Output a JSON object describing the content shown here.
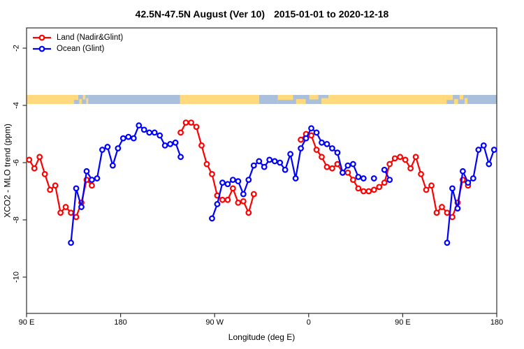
{
  "title": {
    "region_period": "42.5N-47.5N August (Ver 10)",
    "date_range": "2015-01-01 to 2020-12-18"
  },
  "legend": {
    "items": [
      {
        "label": "Land (Nadir&Glint)",
        "color": "#ff0000"
      },
      {
        "label": "Ocean (Glint)",
        "color": "#0000ff"
      }
    ]
  },
  "axes": {
    "x": {
      "label": "Longitude (deg E)",
      "ticks": [
        {
          "pos": 0,
          "label": "90 E"
        },
        {
          "pos": 90,
          "label": "180"
        },
        {
          "pos": 180,
          "label": "90 W"
        },
        {
          "pos": 270,
          "label": "0"
        },
        {
          "pos": 360,
          "label": "90 E"
        },
        {
          "pos": 450,
          "label": "180"
        }
      ]
    },
    "y": {
      "label": "XCO2 - MLO trend (ppm)",
      "ticks": [
        {
          "value": -2,
          "label": "-2"
        },
        {
          "value": -4,
          "label": "-4"
        },
        {
          "value": -6,
          "label": "-6"
        },
        {
          "value": -8,
          "label": "-8"
        },
        {
          "value": -10,
          "label": "-10"
        }
      ]
    }
  },
  "chart_data": {
    "type": "line",
    "title": "42.5N-47.5N August (Ver 10)   2015-01-01 to 2020-12-18",
    "xlabel": "Longitude (deg E)",
    "ylabel": "XCO2 - MLO trend (ppm)",
    "x_axis_note": "x values are degrees along a wrapped longitude axis starting at 90E: 90E->180->90W->0->90E->180 (0..450); longitudes 90E-180E appear at both ends",
    "xlim": [
      0,
      450
    ],
    "ylim": [
      -11.3,
      -1.3
    ],
    "grid": false,
    "legend_position": "top-left",
    "marker": "open-circle",
    "series": [
      {
        "name": "Land (Nadir&Glint)",
        "color": "#ff0000",
        "segments": [
          [
            [
              2.5,
              -5.9
            ],
            [
              7.5,
              -6.2
            ],
            [
              12.5,
              -5.8
            ],
            [
              17.5,
              -6.4
            ],
            [
              22.5,
              -6.95
            ],
            [
              27.5,
              -6.8
            ],
            [
              32.5,
              -7.75
            ],
            [
              37.5,
              -7.55
            ],
            [
              42.5,
              -7.75
            ],
            [
              47.5,
              -7.9
            ],
            [
              52.5,
              -7.4
            ],
            [
              57.5,
              -6.6
            ],
            [
              62.5,
              -6.8
            ]
          ],
          [
            [
              147.5,
              -4.95
            ],
            [
              152.5,
              -4.6
            ],
            [
              157.5,
              -4.6
            ],
            [
              162.5,
              -4.75
            ],
            [
              167.5,
              -5.4
            ],
            [
              172.5,
              -6.05
            ],
            [
              177.5,
              -6.4
            ],
            [
              182.5,
              -7.15
            ],
            [
              187.5,
              -7.3
            ],
            [
              192.5,
              -7.3
            ],
            [
              197.5,
              -6.9
            ],
            [
              202.5,
              -7.4
            ],
            [
              207.5,
              -7.35
            ],
            [
              212.5,
              -7.75
            ],
            [
              217.5,
              -7.1
            ]
          ],
          [
            [
              262.5,
              -5.2
            ],
            [
              267.5,
              -5.0
            ],
            [
              272.5,
              -5.05
            ],
            [
              277.5,
              -5.55
            ],
            [
              282.5,
              -5.8
            ],
            [
              287.5,
              -6.15
            ],
            [
              292.5,
              -6.2
            ],
            [
              297.5,
              -6.05
            ],
            [
              302.5,
              -6.35
            ],
            [
              307.5,
              -6.35
            ],
            [
              312.5,
              -6.6
            ],
            [
              317.5,
              -6.9
            ],
            [
              322.5,
              -7.0
            ],
            [
              327.5,
              -7.0
            ],
            [
              332.5,
              -6.95
            ],
            [
              337.5,
              -6.85
            ],
            [
              342.5,
              -6.7
            ],
            [
              347.5,
              -6.05
            ],
            [
              352.5,
              -5.85
            ],
            [
              357.5,
              -5.8
            ],
            [
              362.5,
              -5.9
            ],
            [
              367.5,
              -6.2
            ],
            [
              372.5,
              -5.8
            ],
            [
              377.5,
              -6.4
            ],
            [
              382.5,
              -6.95
            ],
            [
              387.5,
              -6.8
            ],
            [
              392.5,
              -7.75
            ],
            [
              397.5,
              -7.55
            ],
            [
              402.5,
              -7.75
            ],
            [
              407.5,
              -7.9
            ],
            [
              412.5,
              -7.4
            ],
            [
              417.5,
              -6.6
            ],
            [
              422.5,
              -6.8
            ]
          ]
        ]
      },
      {
        "name": "Ocean (Glint)",
        "color": "#0000ff",
        "segments": [
          [
            [
              42.5,
              -8.8
            ],
            [
              47.5,
              -6.9
            ],
            [
              52.5,
              -7.55
            ],
            [
              57.5,
              -6.3
            ],
            [
              62.5,
              -6.6
            ],
            [
              67.5,
              -6.55
            ],
            [
              72.5,
              -5.55
            ],
            [
              77.5,
              -5.45
            ],
            [
              82.5,
              -6.1
            ],
            [
              87.5,
              -5.5
            ],
            [
              92.5,
              -5.15
            ],
            [
              97.5,
              -5.1
            ],
            [
              102.5,
              -5.15
            ],
            [
              107.5,
              -4.7
            ],
            [
              112.5,
              -4.85
            ],
            [
              117.5,
              -4.95
            ],
            [
              122.5,
              -4.95
            ],
            [
              127.5,
              -5.05
            ],
            [
              132.5,
              -5.4
            ],
            [
              137.5,
              -5.35
            ],
            [
              142.5,
              -5.3
            ],
            [
              147.5,
              -5.8
            ]
          ],
          [
            [
              177.5,
              -7.95
            ],
            [
              182.5,
              -7.45
            ],
            [
              187.5,
              -6.7
            ],
            [
              192.5,
              -6.75
            ],
            [
              197.5,
              -6.6
            ],
            [
              202.5,
              -6.65
            ],
            [
              207.5,
              -7.1
            ],
            [
              212.5,
              -6.6
            ],
            [
              217.5,
              -6.1
            ],
            [
              222.5,
              -5.95
            ],
            [
              227.5,
              -6.15
            ],
            [
              232.5,
              -5.9
            ],
            [
              237.5,
              -5.95
            ],
            [
              242.5,
              -6.0
            ],
            [
              247.5,
              -6.25
            ],
            [
              252.5,
              -5.7
            ],
            [
              257.5,
              -6.55
            ],
            [
              262.5,
              -5.5
            ],
            [
              267.5,
              -5.15
            ],
            [
              272.5,
              -4.8
            ],
            [
              277.5,
              -4.95
            ],
            [
              282.5,
              -5.3
            ],
            [
              287.5,
              -5.35
            ],
            [
              292.5,
              -5.5
            ],
            [
              297.5,
              -5.65
            ],
            [
              302.5,
              -6.35
            ],
            [
              307.5,
              -6.1
            ],
            [
              312.5,
              -6.05
            ],
            [
              317.5,
              -6.5
            ],
            [
              322.5,
              -6.55
            ]
          ],
          [
            [
              332.5,
              -6.55
            ]
          ],
          [
            [
              342.5,
              -6.25
            ],
            [
              347.5,
              -6.6
            ]
          ],
          [
            [
              402.5,
              -8.8
            ],
            [
              407.5,
              -6.9
            ],
            [
              412.5,
              -7.6
            ],
            [
              417.5,
              -6.3
            ],
            [
              422.5,
              -6.7
            ],
            [
              427.5,
              -6.55
            ],
            [
              432.5,
              -5.55
            ],
            [
              437.5,
              -5.4
            ],
            [
              442.5,
              -6.05
            ],
            [
              447.5,
              -5.55
            ]
          ]
        ]
      }
    ],
    "surface_band": {
      "description": "land/ocean map strip at ~-3.6 to -3.95 ppm",
      "land_color": "#ffd97d",
      "ocean_color": "#a9bfdc",
      "segments": [
        {
          "from": 0,
          "to": 45.5,
          "surface": "land"
        },
        {
          "from": 45.5,
          "to": 59,
          "surface": "mixed"
        },
        {
          "from": 59,
          "to": 147,
          "surface": "ocean"
        },
        {
          "from": 147,
          "to": 222.5,
          "surface": "land"
        },
        {
          "from": 222.5,
          "to": 240.5,
          "surface": "ocean"
        },
        {
          "from": 240.5,
          "to": 289,
          "surface": "mixed"
        },
        {
          "from": 289,
          "to": 402,
          "surface": "land"
        },
        {
          "from": 402,
          "to": 422,
          "surface": "mixed"
        },
        {
          "from": 422,
          "to": 450,
          "surface": "ocean"
        }
      ]
    }
  }
}
